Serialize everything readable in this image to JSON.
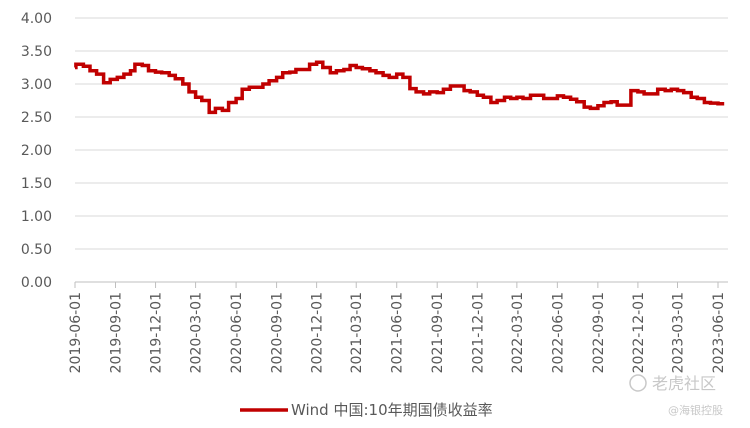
{
  "chart_data": {
    "type": "line",
    "title": "",
    "xlabel": "",
    "ylabel": "",
    "ylim": [
      0,
      4
    ],
    "y_ticks": [
      "0.00",
      "0.50",
      "1.00",
      "1.50",
      "2.00",
      "2.50",
      "3.00",
      "3.50",
      "4.00"
    ],
    "x_ticks": [
      "2019-06-01",
      "2019-09-01",
      "2019-12-01",
      "2020-03-01",
      "2020-06-01",
      "2020-09-01",
      "2020-12-01",
      "2021-03-01",
      "2021-06-01",
      "2021-09-01",
      "2021-12-01",
      "2022-03-01",
      "2022-06-01",
      "2022-09-01",
      "2022-12-01",
      "2023-03-01",
      "2023-06-01"
    ],
    "grid": true,
    "legend_position": "bottom",
    "series": [
      {
        "name": "Wind 中国:10年期国债收益率",
        "color": "#c00000",
        "points": [
          [
            "2019-06-01",
            3.25
          ],
          [
            "2019-06-03",
            3.3
          ],
          [
            "2019-06-20",
            3.27
          ],
          [
            "2019-07-05",
            3.2
          ],
          [
            "2019-07-20",
            3.15
          ],
          [
            "2019-08-05",
            3.02
          ],
          [
            "2019-08-20",
            3.07
          ],
          [
            "2019-09-05",
            3.1
          ],
          [
            "2019-09-20",
            3.15
          ],
          [
            "2019-10-05",
            3.2
          ],
          [
            "2019-10-15",
            3.3
          ],
          [
            "2019-11-01",
            3.28
          ],
          [
            "2019-11-15",
            3.2
          ],
          [
            "2019-12-01",
            3.18
          ],
          [
            "2019-12-15",
            3.17
          ],
          [
            "2020-01-01",
            3.13
          ],
          [
            "2020-01-15",
            3.08
          ],
          [
            "2020-02-01",
            3.0
          ],
          [
            "2020-02-15",
            2.88
          ],
          [
            "2020-03-01",
            2.8
          ],
          [
            "2020-03-15",
            2.75
          ],
          [
            "2020-04-01",
            2.57
          ],
          [
            "2020-04-15",
            2.63
          ],
          [
            "2020-05-01",
            2.6
          ],
          [
            "2020-05-15",
            2.72
          ],
          [
            "2020-06-01",
            2.78
          ],
          [
            "2020-06-15",
            2.92
          ],
          [
            "2020-07-01",
            2.95
          ],
          [
            "2020-07-15",
            2.95
          ],
          [
            "2020-08-01",
            3.0
          ],
          [
            "2020-08-15",
            3.05
          ],
          [
            "2020-09-01",
            3.1
          ],
          [
            "2020-09-15",
            3.17
          ],
          [
            "2020-10-01",
            3.18
          ],
          [
            "2020-10-15",
            3.22
          ],
          [
            "2020-11-01",
            3.22
          ],
          [
            "2020-11-15",
            3.3
          ],
          [
            "2020-12-01",
            3.33
          ],
          [
            "2020-12-15",
            3.25
          ],
          [
            "2021-01-01",
            3.17
          ],
          [
            "2021-01-15",
            3.2
          ],
          [
            "2021-02-01",
            3.22
          ],
          [
            "2021-02-15",
            3.28
          ],
          [
            "2021-03-01",
            3.25
          ],
          [
            "2021-03-15",
            3.23
          ],
          [
            "2021-04-01",
            3.2
          ],
          [
            "2021-04-15",
            3.17
          ],
          [
            "2021-05-01",
            3.13
          ],
          [
            "2021-05-15",
            3.1
          ],
          [
            "2021-06-01",
            3.15
          ],
          [
            "2021-06-15",
            3.1
          ],
          [
            "2021-07-01",
            2.93
          ],
          [
            "2021-07-15",
            2.88
          ],
          [
            "2021-08-01",
            2.85
          ],
          [
            "2021-08-15",
            2.88
          ],
          [
            "2021-09-01",
            2.87
          ],
          [
            "2021-09-15",
            2.92
          ],
          [
            "2021-10-01",
            2.97
          ],
          [
            "2021-10-15",
            2.97
          ],
          [
            "2021-11-01",
            2.9
          ],
          [
            "2021-11-15",
            2.88
          ],
          [
            "2021-12-01",
            2.83
          ],
          [
            "2021-12-15",
            2.8
          ],
          [
            "2022-01-01",
            2.72
          ],
          [
            "2022-01-15",
            2.75
          ],
          [
            "2022-02-01",
            2.8
          ],
          [
            "2022-02-15",
            2.78
          ],
          [
            "2022-03-01",
            2.8
          ],
          [
            "2022-03-15",
            2.78
          ],
          [
            "2022-04-01",
            2.83
          ],
          [
            "2022-04-15",
            2.83
          ],
          [
            "2022-05-01",
            2.78
          ],
          [
            "2022-05-15",
            2.78
          ],
          [
            "2022-06-01",
            2.82
          ],
          [
            "2022-06-15",
            2.8
          ],
          [
            "2022-07-01",
            2.77
          ],
          [
            "2022-07-15",
            2.73
          ],
          [
            "2022-08-01",
            2.65
          ],
          [
            "2022-08-15",
            2.63
          ],
          [
            "2022-09-01",
            2.67
          ],
          [
            "2022-09-15",
            2.72
          ],
          [
            "2022-10-01",
            2.73
          ],
          [
            "2022-10-15",
            2.68
          ],
          [
            "2022-11-01",
            2.68
          ],
          [
            "2022-11-15",
            2.9
          ],
          [
            "2022-12-01",
            2.88
          ],
          [
            "2022-12-15",
            2.85
          ],
          [
            "2023-01-01",
            2.85
          ],
          [
            "2023-01-15",
            2.92
          ],
          [
            "2023-02-01",
            2.9
          ],
          [
            "2023-02-15",
            2.92
          ],
          [
            "2023-03-01",
            2.9
          ],
          [
            "2023-03-15",
            2.87
          ],
          [
            "2023-04-01",
            2.8
          ],
          [
            "2023-04-15",
            2.78
          ],
          [
            "2023-05-01",
            2.72
          ],
          [
            "2023-05-15",
            2.71
          ],
          [
            "2023-06-01",
            2.7
          ],
          [
            "2023-06-15",
            2.7
          ]
        ]
      }
    ]
  },
  "watermarks": [
    "老虎社区",
    "@海银控股"
  ]
}
